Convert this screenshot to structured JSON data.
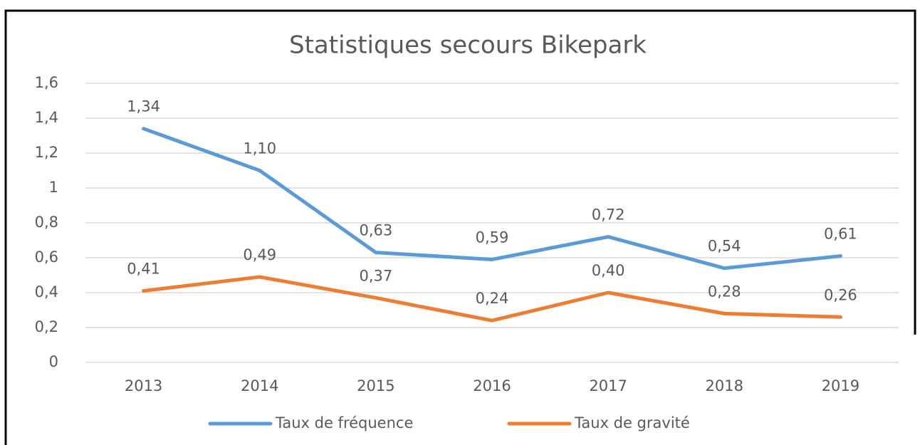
{
  "chart_data": {
    "type": "line",
    "title": "Statistiques secours Bikepark",
    "categories": [
      "2013",
      "2014",
      "2015",
      "2016",
      "2017",
      "2018",
      "2019"
    ],
    "series": [
      {
        "name": "Taux de fréquence",
        "color": "#5b9bd5",
        "values": [
          1.34,
          1.1,
          0.63,
          0.59,
          0.72,
          0.54,
          0.61
        ],
        "value_labels": [
          "1,34",
          "1,10",
          "0,63",
          "0,59",
          "0,72",
          "0,54",
          "0,61"
        ]
      },
      {
        "name": "Taux de gravité",
        "color": "#ed7d31",
        "values": [
          0.41,
          0.49,
          0.37,
          0.24,
          0.4,
          0.28,
          0.26
        ],
        "value_labels": [
          "0,41",
          "0,49",
          "0,37",
          "0,24",
          "0,40",
          "0,28",
          "0,26"
        ]
      }
    ],
    "ylim": [
      0,
      1.6
    ],
    "yticks": [
      0,
      {
        "value": 0.2,
        "label": "0,2"
      },
      {
        "value": 0.4,
        "label": "0,4"
      },
      {
        "value": 0.6,
        "label": "0,6"
      },
      {
        "value": 0.8,
        "label": "0,8"
      },
      1,
      {
        "value": 1.2,
        "label": "1,2"
      },
      {
        "value": 1.4,
        "label": "1,4"
      },
      {
        "value": 1.6,
        "label": "1,6"
      }
    ],
    "grid": true,
    "legend": "bottom"
  }
}
